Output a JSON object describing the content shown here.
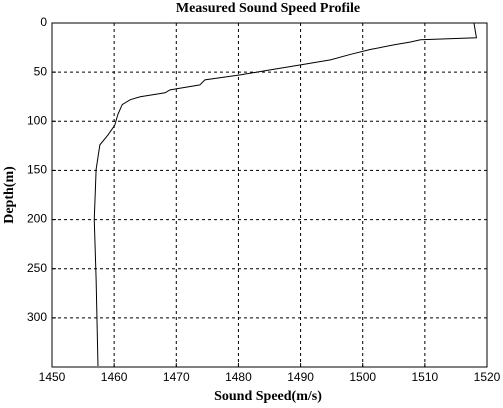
{
  "chart_data": {
    "type": "line",
    "title": "Measured Sound Speed Profile",
    "x_label": "Sound Speed(m/s)",
    "y_label": "Depth(m)",
    "x": [
      1517.9,
      1518.3,
      1509.3,
      1507.6,
      1505.2,
      1501.2,
      1498,
      1494.8,
      1490,
      1485.1,
      1480.3,
      1474.6,
      1473.8,
      1469,
      1468.2,
      1464.2,
      1462.6,
      1461.3,
      1460.6,
      1460.1,
      1459,
      1457.7,
      1457.1,
      1456.8,
      1457.1,
      1457.4
    ],
    "values": [
      0,
      15,
      17,
      19.5,
      22,
      27,
      32,
      37.5,
      42.6,
      47.7,
      52.8,
      57.9,
      63,
      68,
      71,
      75,
      78,
      83,
      93,
      104,
      114,
      124,
      149,
      200,
      261,
      349
    ],
    "color": "#000000",
    "xlim": [
      1450,
      1520
    ],
    "xticks": [
      1450,
      1460,
      1470,
      1480,
      1490,
      1500,
      1510,
      1520
    ],
    "ylim": [
      0,
      350
    ],
    "yticks": [
      0,
      50,
      100,
      150,
      200,
      250,
      300
    ],
    "y_inverted": true,
    "grid": true
  }
}
